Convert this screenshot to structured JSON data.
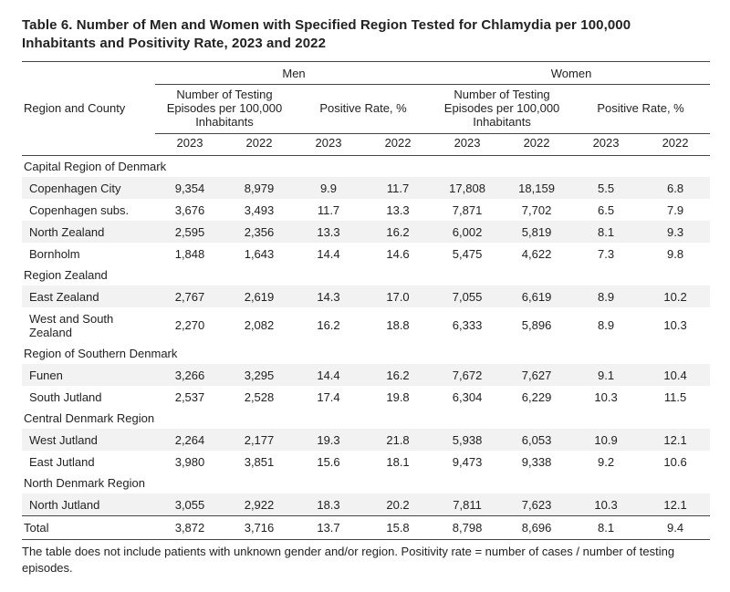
{
  "title": "Table 6. Number of Men and Women with Specified Region Tested for Chlamydia per 100,000 Inhabitants and Positivity Rate, 2023 and 2022",
  "header": {
    "region_county": "Region and County",
    "groups": {
      "men": "Men",
      "women": "Women"
    },
    "sub": {
      "testing": "Number of Testing Episodes per 100,000 Inhabitants",
      "positive": "Positive Rate, %"
    },
    "years": {
      "y2023": "2023",
      "y2022": "2022"
    }
  },
  "regions": [
    {
      "name": "Capital Region of Denmark",
      "counties": [
        {
          "name": "Copenhagen City",
          "m_test_2023": "9,354",
          "m_test_2022": "8,979",
          "m_pos_2023": "9.9",
          "m_pos_2022": "11.7",
          "w_test_2023": "17,808",
          "w_test_2022": "18,159",
          "w_pos_2023": "5.5",
          "w_pos_2022": "6.8"
        },
        {
          "name": "Copenhagen subs.",
          "m_test_2023": "3,676",
          "m_test_2022": "3,493",
          "m_pos_2023": "11.7",
          "m_pos_2022": "13.3",
          "w_test_2023": "7,871",
          "w_test_2022": "7,702",
          "w_pos_2023": "6.5",
          "w_pos_2022": "7.9"
        },
        {
          "name": "North Zealand",
          "m_test_2023": "2,595",
          "m_test_2022": "2,356",
          "m_pos_2023": "13.3",
          "m_pos_2022": "16.2",
          "w_test_2023": "6,002",
          "w_test_2022": "5,819",
          "w_pos_2023": "8.1",
          "w_pos_2022": "9.3"
        },
        {
          "name": "Bornholm",
          "m_test_2023": "1,848",
          "m_test_2022": "1,643",
          "m_pos_2023": "14.4",
          "m_pos_2022": "14.6",
          "w_test_2023": "5,475",
          "w_test_2022": "4,622",
          "w_pos_2023": "7.3",
          "w_pos_2022": "9.8"
        }
      ]
    },
    {
      "name": "Region Zealand",
      "counties": [
        {
          "name": "East Zealand",
          "m_test_2023": "2,767",
          "m_test_2022": "2,619",
          "m_pos_2023": "14.3",
          "m_pos_2022": "17.0",
          "w_test_2023": "7,055",
          "w_test_2022": "6,619",
          "w_pos_2023": "8.9",
          "w_pos_2022": "10.2"
        },
        {
          "name": "West and South Zealand",
          "m_test_2023": "2,270",
          "m_test_2022": "2,082",
          "m_pos_2023": "16.2",
          "m_pos_2022": "18.8",
          "w_test_2023": "6,333",
          "w_test_2022": "5,896",
          "w_pos_2023": "8.9",
          "w_pos_2022": "10.3"
        }
      ]
    },
    {
      "name": "Region of Southern Denmark",
      "counties": [
        {
          "name": "Funen",
          "m_test_2023": "3,266",
          "m_test_2022": "3,295",
          "m_pos_2023": "14.4",
          "m_pos_2022": "16.2",
          "w_test_2023": "7,672",
          "w_test_2022": "7,627",
          "w_pos_2023": "9.1",
          "w_pos_2022": "10.4"
        },
        {
          "name": "South Jutland",
          "m_test_2023": "2,537",
          "m_test_2022": "2,528",
          "m_pos_2023": "17.4",
          "m_pos_2022": "19.8",
          "w_test_2023": "6,304",
          "w_test_2022": "6,229",
          "w_pos_2023": "10.3",
          "w_pos_2022": "11.5"
        }
      ]
    },
    {
      "name": "Central Denmark Region",
      "counties": [
        {
          "name": "West Jutland",
          "m_test_2023": "2,264",
          "m_test_2022": "2,177",
          "m_pos_2023": "19.3",
          "m_pos_2022": "21.8",
          "w_test_2023": "5,938",
          "w_test_2022": "6,053",
          "w_pos_2023": "10.9",
          "w_pos_2022": "12.1"
        },
        {
          "name": "East Jutland",
          "m_test_2023": "3,980",
          "m_test_2022": "3,851",
          "m_pos_2023": "15.6",
          "m_pos_2022": "18.1",
          "w_test_2023": "9,473",
          "w_test_2022": "9,338",
          "w_pos_2023": "9.2",
          "w_pos_2022": "10.6"
        }
      ]
    },
    {
      "name": "North Denmark Region",
      "counties": [
        {
          "name": "North Jutland",
          "m_test_2023": "3,055",
          "m_test_2022": "2,922",
          "m_pos_2023": "18.3",
          "m_pos_2022": "20.2",
          "w_test_2023": "7,811",
          "w_test_2022": "7,623",
          "w_pos_2023": "10.3",
          "w_pos_2022": "12.1"
        }
      ]
    }
  ],
  "total": {
    "label": "Total",
    "m_test_2023": "3,872",
    "m_test_2022": "3,716",
    "m_pos_2023": "13.7",
    "m_pos_2022": "15.8",
    "w_test_2023": "8,798",
    "w_test_2022": "8,696",
    "w_pos_2023": "8.1",
    "w_pos_2022": "9.4"
  },
  "footnote": "The table does not include patients with unknown gender and/or region. Positivity rate = number of cases / number of testing episodes.",
  "style": {
    "background_color": "#ffffff",
    "shade_color": "#f2f2f2",
    "rule_color": "#444444",
    "font_family": "Segoe UI",
    "title_fontsize": 15,
    "body_fontsize": 13
  }
}
